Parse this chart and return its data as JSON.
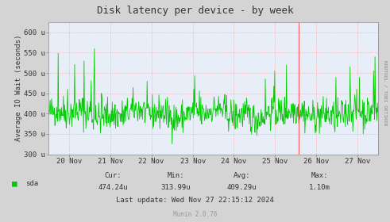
{
  "title": "Disk latency per device - by week",
  "ylabel": "Average IO Wait (seconds)",
  "background_color": "#d4d4d4",
  "plot_bg_color": "#e8eef8",
  "line_color": "#00cc00",
  "ylim": [
    300,
    625
  ],
  "yticks": [
    300,
    350,
    400,
    450,
    500,
    550,
    600
  ],
  "ytick_labels": [
    "300 u",
    "350 u",
    "400 u",
    "450 u",
    "500 u",
    "550 u",
    "600 u"
  ],
  "xtick_labels": [
    "20 Nov",
    "21 Nov",
    "22 Nov",
    "23 Nov",
    "24 Nov",
    "25 Nov",
    "26 Nov",
    "27 Nov"
  ],
  "legend_label": "sda",
  "legend_color": "#00cc00",
  "cur_label": "Cur:",
  "cur_val": "474.24u",
  "min_label": "Min:",
  "min_val": "313.99u",
  "avg_label": "Avg:",
  "avg_val": "409.29u",
  "max_label": "Max:",
  "max_val": "1.10m",
  "last_update": "Last update: Wed Nov 27 22:15:12 2024",
  "munin_version": "Munin 2.0.76",
  "right_text": "RRDTOOL / TOBI OETIKER",
  "seed": 42,
  "n_points": 700,
  "red_vline_x": 530,
  "title_fontsize": 9,
  "axis_fontsize": 6.5,
  "tick_fontsize": 6.5
}
